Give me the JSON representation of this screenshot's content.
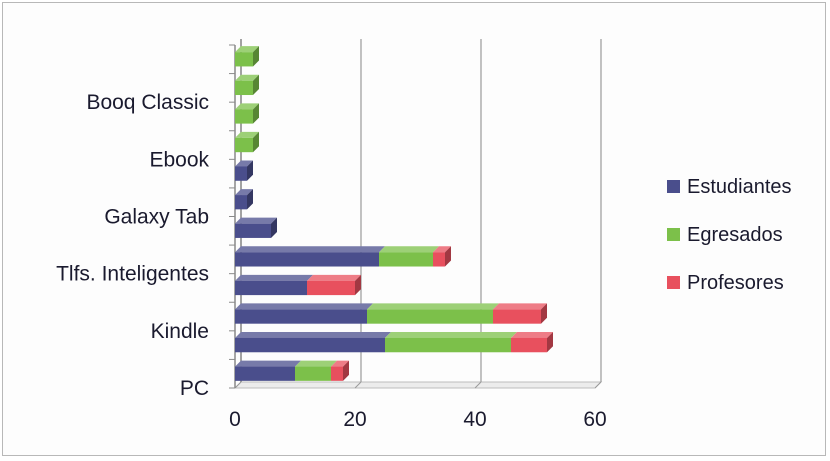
{
  "chart_data": {
    "type": "bar",
    "orientation": "horizontal",
    "stacked": true,
    "style": "3d",
    "title": "",
    "xlabel": "",
    "ylabel": "",
    "xlim": [
      0,
      60
    ],
    "x_ticks": [
      "0",
      "20",
      "40",
      "60"
    ],
    "grid": true,
    "legend_position": "right",
    "row_labels": [
      "PC",
      "",
      "Kindle",
      "",
      "Tlfs. Inteligentes",
      "",
      "Galaxy Tab",
      "",
      "Ebook",
      "",
      "Booq Classic",
      ""
    ],
    "series": [
      {
        "name": "Estudiantes",
        "color": "#4a4e8c",
        "values": [
          10,
          25,
          22,
          12,
          24,
          6,
          2,
          2,
          0,
          0,
          0,
          0
        ]
      },
      {
        "name": "Egresados",
        "color": "#7cc04a",
        "values": [
          6,
          21,
          21,
          0,
          9,
          0,
          0,
          0,
          3,
          3,
          3,
          3
        ]
      },
      {
        "name": "Profesores",
        "color": "#e8505e",
        "values": [
          2,
          6,
          8,
          8,
          2,
          0,
          0,
          0,
          0,
          0,
          0,
          0
        ]
      }
    ]
  }
}
